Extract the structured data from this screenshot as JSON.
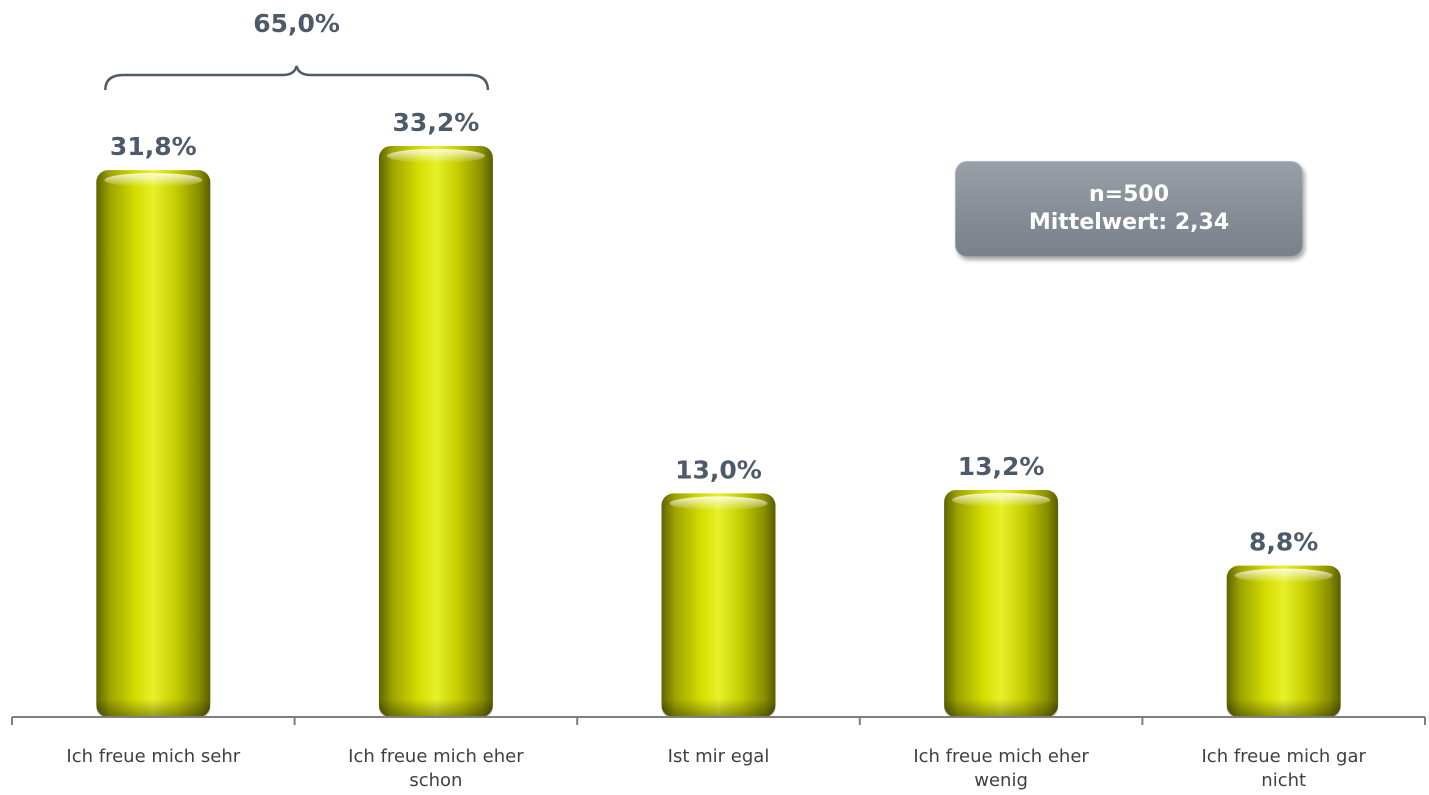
{
  "chart_data": {
    "type": "bar",
    "categories": [
      "Ich freue mich sehr",
      "Ich freue mich eher schon",
      "Ist mir egal",
      "Ich freue mich eher wenig",
      "Ich freue mich gar nicht"
    ],
    "category_lines": [
      [
        "Ich freue mich sehr"
      ],
      [
        "Ich freue mich eher",
        "schon"
      ],
      [
        "Ist mir egal"
      ],
      [
        "Ich freue mich eher",
        "wenig"
      ],
      [
        "Ich freue mich gar",
        "nicht"
      ]
    ],
    "values": [
      31.8,
      33.2,
      13.0,
      13.2,
      8.8
    ],
    "value_labels": [
      "31,8%",
      "33,2%",
      "13,0%",
      "13,2%",
      "8,8%"
    ],
    "ylim": [
      0,
      33.2
    ],
    "grid": false,
    "legend": "none",
    "annotations": {
      "bracket": {
        "label": "65,0%",
        "spans_categories": [
          0,
          1
        ]
      }
    }
  },
  "info_box": {
    "line1": "n=500",
    "line2": "Mittelwert: 2,34"
  },
  "colors": {
    "bar_light": "#e8f02a",
    "bar_mid": "#c4cc00",
    "bar_dark": "#5f6300",
    "text": "#4d5a6a",
    "axis": "#7f7f7f",
    "label_text": "#404040",
    "box_bg": "#868d96"
  }
}
